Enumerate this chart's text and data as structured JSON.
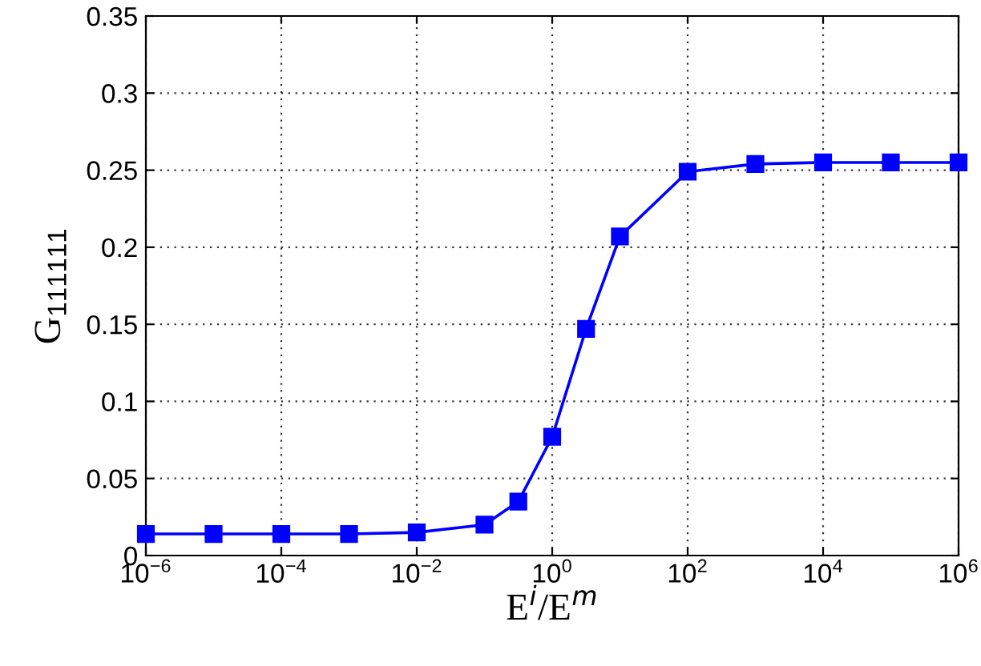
{
  "chart_data": {
    "type": "line",
    "xlabel": "E$^{i}$/E$^{m}$",
    "ylabel": "G$_{111111}$",
    "x": [
      1e-06,
      1e-05,
      0.0001,
      0.001,
      0.01,
      0.1,
      0.316,
      1,
      3.16,
      10,
      100,
      1000,
      10000,
      100000,
      1000000
    ],
    "series": [
      {
        "color": "#0000ff",
        "values": [
          0.014,
          0.014,
          0.014,
          0.014,
          0.015,
          0.02,
          0.035,
          0.077,
          0.147,
          0.207,
          0.249,
          0.254,
          0.255,
          0.255,
          0.255
        ]
      }
    ],
    "log": "x",
    "marker": "square",
    "line_style": "solid",
    "grid": true,
    "xlim": [
      1e-06,
      1000000.0
    ],
    "xticks": [
      {
        "value": 1e-06,
        "label": "10$^{−6}$"
      },
      {
        "value": 0.0001,
        "label": "10$^{−4}$"
      },
      {
        "value": 0.01,
        "label": "10$^{−2}$"
      },
      {
        "value": 1,
        "label": "10$^{0}$"
      },
      {
        "value": 100,
        "label": "10$^{2}$"
      },
      {
        "value": 10000,
        "label": "10$^{4}$"
      },
      {
        "value": 1000000,
        "label": "10$^{6}$"
      }
    ],
    "ylim": [
      0,
      0.35
    ],
    "yticks": [
      0,
      0.05,
      0.1,
      0.15,
      0.2,
      0.25,
      0.3,
      0.35
    ]
  }
}
